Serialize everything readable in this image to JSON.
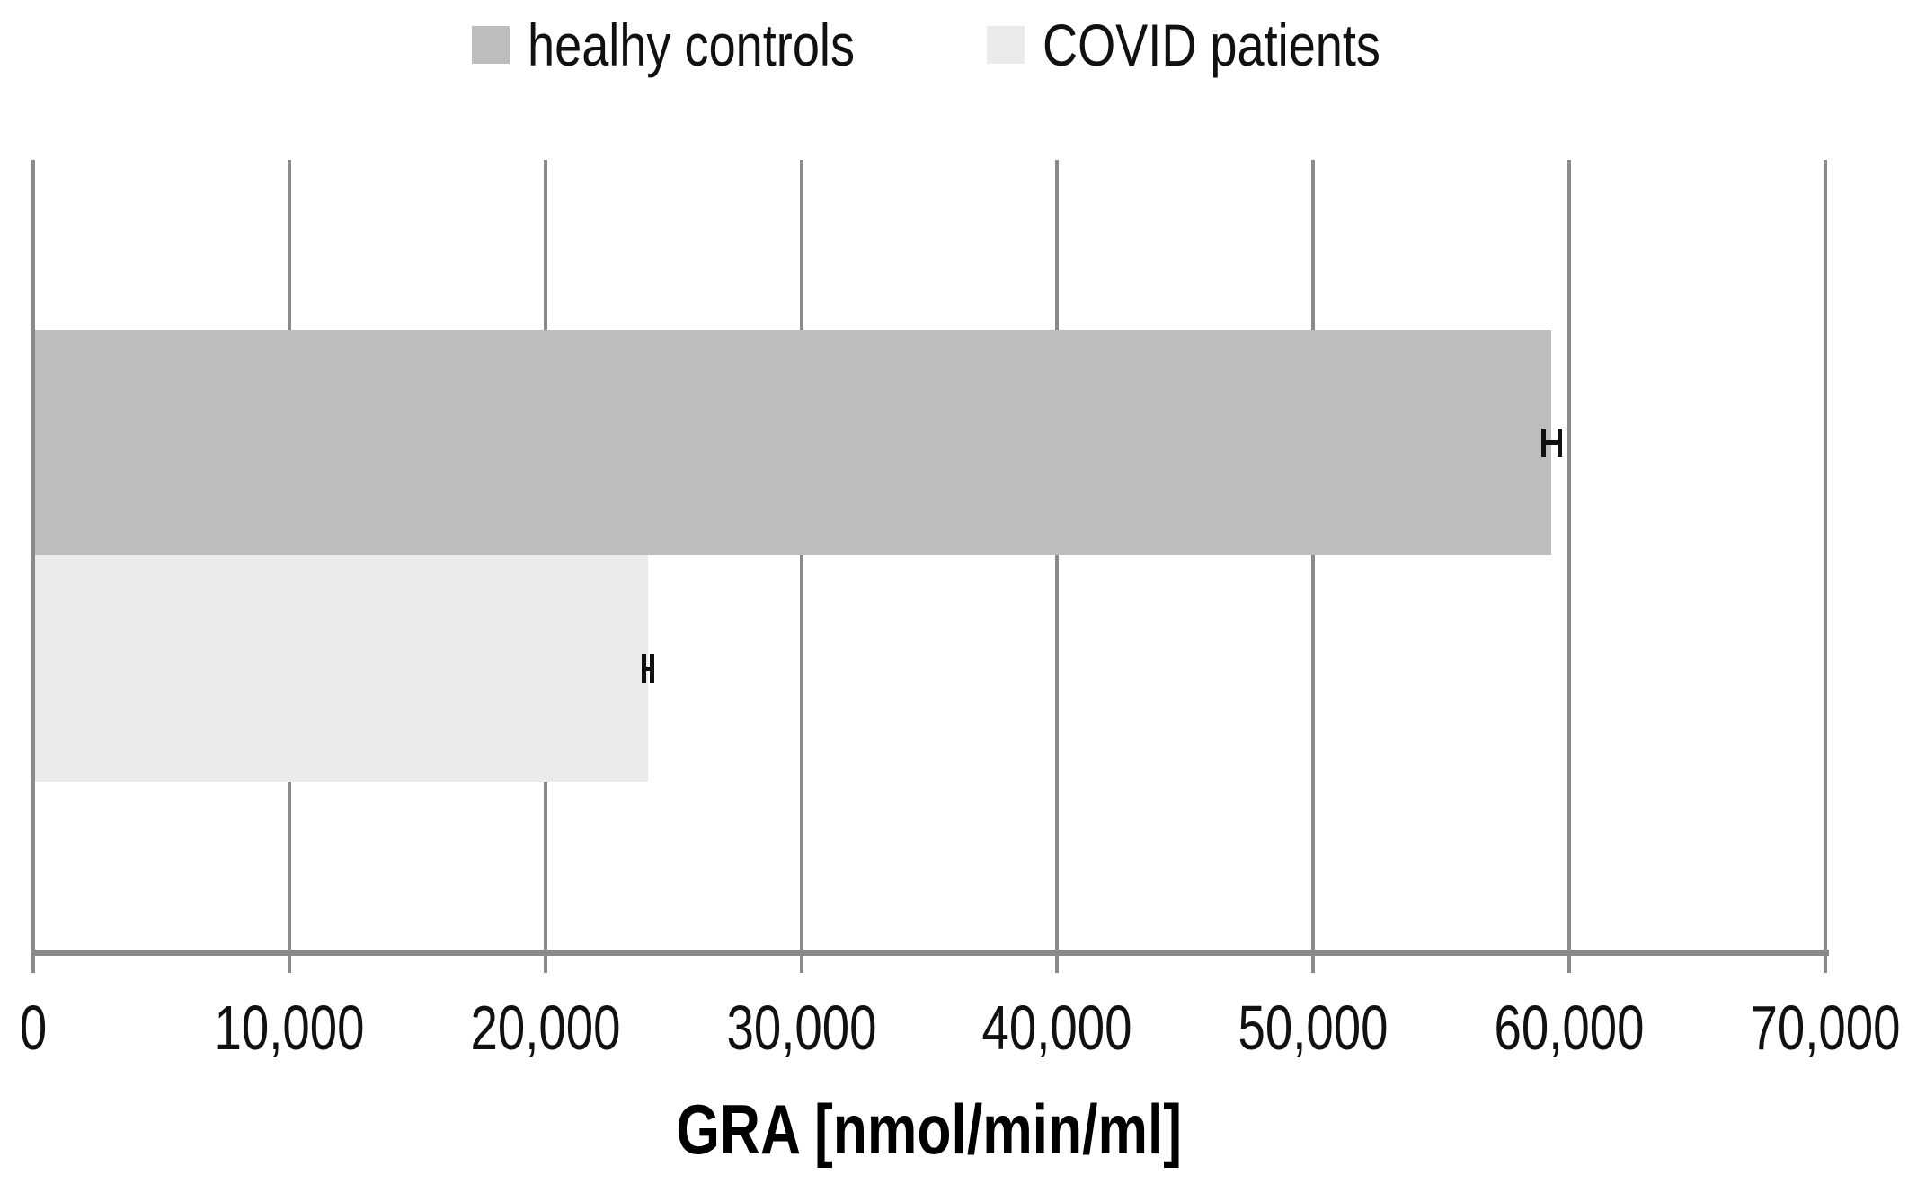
{
  "chart_data": {
    "type": "bar",
    "orientation": "horizontal",
    "title": "",
    "xlabel": "GRA [nmol/min/ml]",
    "ylabel": "",
    "xlim": [
      0,
      70000
    ],
    "xticks": [
      0,
      10000,
      20000,
      30000,
      40000,
      50000,
      60000,
      70000
    ],
    "xtick_labels": [
      "0",
      "10,000",
      "20,000",
      "30,000",
      "40,000",
      "50,000",
      "60,000",
      "70,000"
    ],
    "grid": "vertical",
    "legend_position": "top-center",
    "series": [
      {
        "name": "healhy controls",
        "value": 59300,
        "error": 400,
        "color": "#bdbdbd"
      },
      {
        "name": "COVID patients",
        "value": 24000,
        "error": 250,
        "color": "#ebebeb"
      }
    ],
    "grid_color": "#8a8a8a",
    "text_color": "#111111",
    "error_bar_color": "#111111"
  },
  "legend": {
    "items": [
      {
        "label": "healhy controls",
        "color": "#bdbdbd"
      },
      {
        "label": "COVID patients",
        "color": "#ebebeb"
      }
    ]
  }
}
